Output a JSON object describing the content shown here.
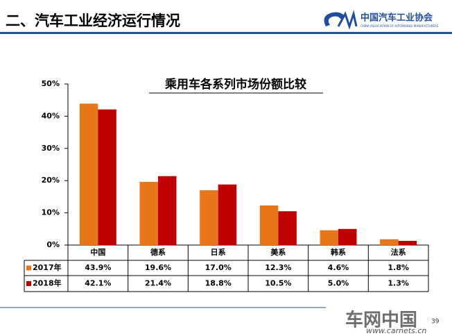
{
  "header": {
    "title": "二、汽车工业经济运行情况",
    "logo_name": "中国汽车工业协会",
    "logo_english": "CHINA ASSOCIATION OF AUTOMOBILE MANUFACTURERS",
    "page_number": "39"
  },
  "watermark": {
    "name": "车网中国",
    "url": "www.carnets.cn"
  },
  "chart_data": {
    "type": "bar",
    "title": "乘用车各系列市场份额比较",
    "categories": [
      "中国",
      "德系",
      "日系",
      "美系",
      "韩系",
      "法系"
    ],
    "series": [
      {
        "name": "2017年",
        "color": "#e8761b",
        "values": [
          43.9,
          19.6,
          17.0,
          12.3,
          4.6,
          1.8
        ],
        "value_labels": [
          "43.9%",
          "19.6%",
          "17.0%",
          "12.3%",
          "4.6%",
          "1.8%"
        ]
      },
      {
        "name": "2018年",
        "color": "#c00000",
        "values": [
          42.1,
          21.4,
          18.8,
          10.5,
          5.0,
          1.3
        ],
        "value_labels": [
          "42.1%",
          "21.4%",
          "18.8%",
          "10.5%",
          "5.0%",
          "1.3%"
        ]
      }
    ],
    "ylim": [
      0,
      50
    ],
    "yticks": [
      {
        "value": 0,
        "label": "0%"
      },
      {
        "value": 10,
        "label": "10%"
      },
      {
        "value": 20,
        "label": "20%"
      },
      {
        "value": 30,
        "label": "30%"
      },
      {
        "value": 40,
        "label": "40%"
      },
      {
        "value": 50,
        "label": "50%"
      }
    ]
  }
}
